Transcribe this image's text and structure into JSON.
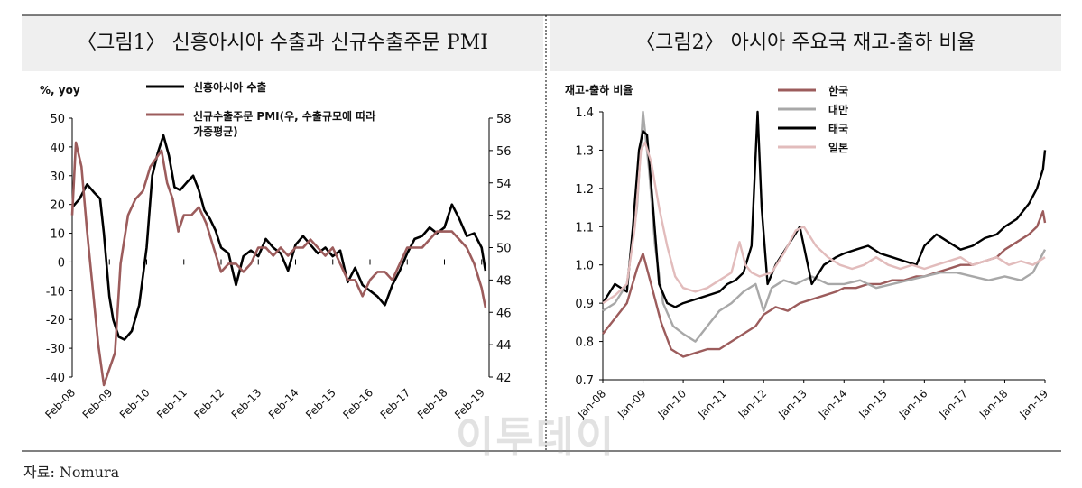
{
  "source": "자료: Nomura",
  "watermark": "이투데이",
  "chart_data": [
    {
      "type": "line",
      "title": "〈그림1〉 신흥아시아 수출과 신규수출주문 PMI",
      "ylabel": "%, yoy",
      "ylim": [
        -40,
        50
      ],
      "yticks": [
        "50",
        "40",
        "30",
        "20",
        "10",
        "0",
        "-10",
        "-20",
        "-30",
        "-40"
      ],
      "ylim_right": [
        42,
        58
      ],
      "yticks_right": [
        "58",
        "56",
        "54",
        "52",
        "50",
        "48",
        "46",
        "44",
        "42"
      ],
      "xlim": [
        2008.0,
        2019.2
      ],
      "xticks": [
        "Feb-08",
        "Feb-09",
        "Feb-10",
        "Feb-11",
        "Feb-12",
        "Feb-13",
        "Feb-14",
        "Feb-15",
        "Feb-16",
        "Feb-17",
        "Feb-18",
        "Feb-19"
      ],
      "legend_position": "top",
      "series": [
        {
          "name": "신흥아시아 수출",
          "axis": "left",
          "color": "#000000",
          "x": [
            2008.0,
            2008.2,
            2008.4,
            2008.6,
            2008.75,
            2008.85,
            2009.0,
            2009.1,
            2009.25,
            2009.4,
            2009.6,
            2009.8,
            2010.0,
            2010.15,
            2010.3,
            2010.45,
            2010.6,
            2010.75,
            2010.9,
            2011.1,
            2011.25,
            2011.4,
            2011.55,
            2011.7,
            2011.85,
            2012.0,
            2012.2,
            2012.4,
            2012.6,
            2012.8,
            2013.0,
            2013.2,
            2013.4,
            2013.6,
            2013.8,
            2014.0,
            2014.2,
            2014.4,
            2014.6,
            2014.8,
            2015.0,
            2015.2,
            2015.4,
            2015.6,
            2015.8,
            2016.0,
            2016.2,
            2016.4,
            2016.6,
            2016.8,
            2017.0,
            2017.2,
            2017.4,
            2017.6,
            2017.8,
            2018.0,
            2018.2,
            2018.4,
            2018.6,
            2018.8,
            2019.0,
            2019.1
          ],
          "y": [
            19,
            22,
            27,
            24,
            22,
            10,
            -12,
            -20,
            -26,
            -27,
            -24,
            -15,
            5,
            30,
            38,
            44,
            37,
            26,
            25,
            28,
            30,
            25,
            18,
            15,
            11,
            5,
            3,
            -8,
            2,
            4,
            2,
            8,
            5,
            3,
            -3,
            6,
            9,
            6,
            3,
            5,
            2,
            4,
            -7,
            -2,
            -8,
            -10,
            -12,
            -15,
            -8,
            -3,
            3,
            8,
            9,
            12,
            10,
            12,
            20,
            15,
            9,
            10,
            5,
            -3
          ]
        },
        {
          "name": "신규수출주문 PMI(우, 수출규모에 따라 가중평균)",
          "axis": "right",
          "color": "#9c5c5c",
          "x": [
            2008.0,
            2008.1,
            2008.25,
            2008.4,
            2008.55,
            2008.7,
            2008.85,
            2009.0,
            2009.15,
            2009.3,
            2009.5,
            2009.7,
            2009.9,
            2010.1,
            2010.25,
            2010.4,
            2010.55,
            2010.7,
            2010.85,
            2011.0,
            2011.2,
            2011.4,
            2011.6,
            2011.8,
            2012.0,
            2012.2,
            2012.4,
            2012.6,
            2012.8,
            2013.0,
            2013.2,
            2013.4,
            2013.6,
            2013.8,
            2014.0,
            2014.2,
            2014.4,
            2014.6,
            2014.8,
            2015.0,
            2015.2,
            2015.4,
            2015.6,
            2015.8,
            2016.0,
            2016.2,
            2016.4,
            2016.6,
            2016.8,
            2017.0,
            2017.2,
            2017.4,
            2017.6,
            2017.8,
            2018.0,
            2018.2,
            2018.4,
            2018.6,
            2018.8,
            2019.0,
            2019.1
          ],
          "y": [
            52,
            56.5,
            55,
            51,
            47.5,
            44,
            41.5,
            42.5,
            43.5,
            49,
            52,
            53,
            53.5,
            55,
            55.5,
            56,
            54,
            53,
            51,
            52,
            52,
            52.5,
            51.5,
            50,
            48.5,
            49,
            49,
            48.5,
            49,
            50,
            50,
            49.5,
            50,
            49.5,
            50,
            50,
            50.5,
            50,
            49.5,
            50,
            49,
            48,
            48,
            47,
            48,
            48.5,
            48.5,
            48,
            49,
            50,
            50,
            50,
            50.5,
            51,
            51,
            51,
            50.5,
            50,
            49,
            47.5,
            46.3
          ]
        }
      ]
    },
    {
      "type": "line",
      "title": "〈그림2〉 아시아 주요국 재고-출하 비율",
      "ylabel": "재고-출하 비율",
      "ylim": [
        0.7,
        1.4
      ],
      "yticks": [
        "1.4",
        "1.3",
        "1.2",
        "1.1",
        "1.0",
        "0.9",
        "0.8",
        "0.7"
      ],
      "xlim": [
        2008.0,
        2019.0
      ],
      "xticks": [
        "Jan-08",
        "Jan-09",
        "Jan-10",
        "Jan-11",
        "Jan-12",
        "Jan-13",
        "Jan-14",
        "Jan-15",
        "Jan-16",
        "Jan-17",
        "Jan-18",
        "Jan-19"
      ],
      "legend_position": "top",
      "series": [
        {
          "name": "한국",
          "color": "#9c5c5c",
          "x": [
            2008.0,
            2008.3,
            2008.6,
            2008.85,
            2009.0,
            2009.2,
            2009.45,
            2009.7,
            2010.0,
            2010.3,
            2010.6,
            2010.9,
            2011.2,
            2011.5,
            2011.8,
            2012.0,
            2012.3,
            2012.6,
            2012.9,
            2013.2,
            2013.5,
            2013.8,
            2014.0,
            2014.3,
            2014.6,
            2014.9,
            2015.2,
            2015.5,
            2015.8,
            2016.0,
            2016.3,
            2016.6,
            2016.9,
            2017.2,
            2017.5,
            2017.8,
            2018.0,
            2018.3,
            2018.6,
            2018.8,
            2018.95,
            2019.0
          ],
          "y": [
            0.82,
            0.86,
            0.9,
            0.99,
            1.03,
            0.95,
            0.85,
            0.78,
            0.76,
            0.77,
            0.78,
            0.78,
            0.8,
            0.82,
            0.84,
            0.87,
            0.89,
            0.88,
            0.9,
            0.91,
            0.92,
            0.93,
            0.94,
            0.94,
            0.95,
            0.95,
            0.96,
            0.96,
            0.97,
            0.97,
            0.98,
            0.99,
            1.0,
            1.0,
            1.01,
            1.02,
            1.04,
            1.06,
            1.08,
            1.1,
            1.14,
            1.11
          ]
        },
        {
          "name": "대만",
          "color": "#a8a8a8",
          "x": [
            2008.0,
            2008.3,
            2008.6,
            2008.85,
            2009.0,
            2009.15,
            2009.3,
            2009.5,
            2009.75,
            2010.0,
            2010.3,
            2010.6,
            2010.9,
            2011.2,
            2011.5,
            2011.8,
            2012.0,
            2012.2,
            2012.5,
            2012.8,
            2013.2,
            2013.6,
            2014.0,
            2014.4,
            2014.8,
            2015.2,
            2015.6,
            2016.0,
            2016.4,
            2016.8,
            2017.2,
            2017.6,
            2018.0,
            2018.4,
            2018.7,
            2019.0
          ],
          "y": [
            0.88,
            0.9,
            0.95,
            1.15,
            1.4,
            1.25,
            1.05,
            0.9,
            0.84,
            0.82,
            0.8,
            0.84,
            0.88,
            0.9,
            0.93,
            0.95,
            0.88,
            0.94,
            0.96,
            0.95,
            0.97,
            0.95,
            0.95,
            0.96,
            0.94,
            0.95,
            0.96,
            0.97,
            0.98,
            0.98,
            0.97,
            0.96,
            0.97,
            0.96,
            0.98,
            1.04
          ]
        },
        {
          "name": "태국",
          "color": "#000000",
          "x": [
            2008.0,
            2008.3,
            2008.6,
            2008.75,
            2008.9,
            2009.0,
            2009.1,
            2009.25,
            2009.4,
            2009.6,
            2009.8,
            2010.0,
            2010.3,
            2010.6,
            2010.9,
            2011.1,
            2011.3,
            2011.5,
            2011.7,
            2011.85,
            2011.95,
            2012.1,
            2012.3,
            2012.6,
            2012.9,
            2013.2,
            2013.5,
            2013.8,
            2014.0,
            2014.3,
            2014.6,
            2014.9,
            2015.2,
            2015.5,
            2015.8,
            2016.0,
            2016.3,
            2016.6,
            2016.9,
            2017.2,
            2017.5,
            2017.8,
            2018.0,
            2018.3,
            2018.6,
            2018.8,
            2018.95,
            2019.0
          ],
          "y": [
            0.9,
            0.95,
            0.93,
            1.1,
            1.3,
            1.35,
            1.34,
            1.15,
            0.95,
            0.9,
            0.89,
            0.9,
            0.91,
            0.92,
            0.93,
            0.95,
            0.96,
            0.98,
            1.05,
            1.4,
            1.15,
            0.95,
            1.0,
            1.05,
            1.1,
            0.95,
            1.0,
            1.02,
            1.03,
            1.04,
            1.05,
            1.03,
            1.02,
            1.01,
            1.0,
            1.05,
            1.08,
            1.06,
            1.04,
            1.05,
            1.07,
            1.08,
            1.1,
            1.12,
            1.16,
            1.2,
            1.25,
            1.3
          ]
        },
        {
          "name": "일본",
          "color": "#e2bcbc",
          "x": [
            2008.0,
            2008.3,
            2008.6,
            2008.8,
            2008.95,
            2009.05,
            2009.2,
            2009.4,
            2009.6,
            2009.8,
            2010.0,
            2010.3,
            2010.6,
            2010.9,
            2011.2,
            2011.4,
            2011.55,
            2011.7,
            2011.9,
            2012.2,
            2012.5,
            2012.8,
            2013.0,
            2013.3,
            2013.6,
            2013.9,
            2014.2,
            2014.5,
            2014.8,
            2015.1,
            2015.4,
            2015.7,
            2016.0,
            2016.3,
            2016.6,
            2016.9,
            2017.2,
            2017.5,
            2017.8,
            2018.1,
            2018.4,
            2018.7,
            2019.0
          ],
          "y": [
            0.9,
            0.92,
            0.95,
            1.1,
            1.3,
            1.32,
            1.27,
            1.15,
            1.05,
            0.97,
            0.94,
            0.93,
            0.94,
            0.96,
            0.98,
            1.06,
            1.0,
            0.98,
            0.97,
            0.98,
            1.03,
            1.09,
            1.1,
            1.05,
            1.02,
            1.0,
            0.99,
            1.0,
            1.02,
            1.0,
            0.99,
            1.0,
            0.99,
            1.0,
            1.01,
            1.02,
            1.0,
            1.01,
            1.02,
            1.0,
            1.01,
            1.0,
            1.02
          ]
        }
      ]
    }
  ]
}
